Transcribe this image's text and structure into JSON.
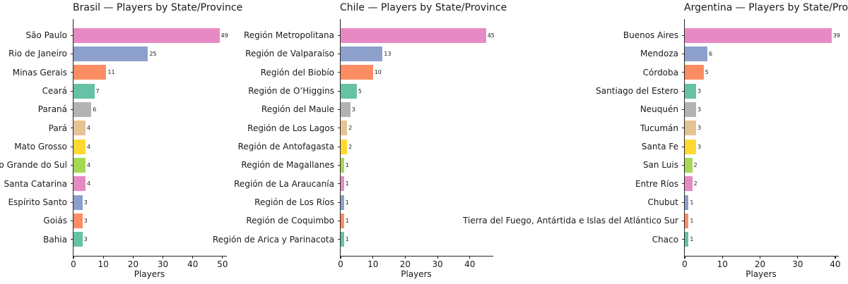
{
  "figure": {
    "background": "#ffffff",
    "text_color": "#1a1a1a",
    "axis_color": "#262626",
    "palette": [
      "#e78ac3",
      "#8da0cb",
      "#fc8d62",
      "#66c2a5",
      "#b3b3b3",
      "#e5c494",
      "#ffd92f",
      "#a6d854"
    ]
  },
  "chart_data": [
    {
      "type": "bar",
      "orientation": "horizontal",
      "title": "Brasil — Players by State/Province",
      "xlabel": "Players",
      "xlim": [
        0,
        51.45
      ],
      "xticks": [
        0,
        10,
        20,
        30,
        40,
        50
      ],
      "grid": false,
      "legend": false,
      "categories": [
        "São Paulo",
        "Rio de Janeiro",
        "Minas Gerais",
        "Ceará",
        "Paraná",
        "Pará",
        "Mato Grosso",
        "Rio Grande do Sul",
        "Santa Catarina",
        "Espírito Santo",
        "Goiás",
        "Bahia"
      ],
      "values": [
        49,
        25,
        11,
        7,
        6,
        4,
        4,
        4,
        4,
        3,
        3,
        3
      ]
    },
    {
      "type": "bar",
      "orientation": "horizontal",
      "title": "Chile — Players by State/Province",
      "xlabel": "Players",
      "xlim": [
        0,
        47.25
      ],
      "xticks": [
        0,
        10,
        20,
        30,
        40
      ],
      "grid": false,
      "legend": false,
      "categories": [
        "Región Metropolitana",
        "Región de Valparaíso",
        "Región del Biobío",
        "Región de O’Higgins",
        "Región del Maule",
        "Región de Los Lagos",
        "Región de Antofagasta",
        "Región de Magallanes",
        "Región de La Araucanía",
        "Región de Los Ríos",
        "Región de Coquimbo",
        "Región de Arica y Parinacota"
      ],
      "values": [
        45,
        13,
        10,
        5,
        3,
        2,
        2,
        1,
        1,
        1,
        1,
        1
      ]
    },
    {
      "type": "bar",
      "orientation": "horizontal",
      "title": "Argentina — Players by State/Province",
      "xlabel": "Players",
      "xlim": [
        0,
        40.95
      ],
      "xticks": [
        0,
        10,
        20,
        30,
        40
      ],
      "grid": false,
      "legend": false,
      "categories": [
        "Buenos Aires",
        "Mendoza",
        "Córdoba",
        "Santiago del Estero",
        "Neuquén",
        "Tucumán",
        "Santa Fe",
        "San Luis",
        "Entre Ríos",
        "Chubut",
        "Tierra del Fuego, Antártida e Islas del Atlántico Sur",
        "Chaco"
      ],
      "values": [
        39,
        6,
        5,
        3,
        3,
        3,
        3,
        2,
        2,
        1,
        1,
        1
      ]
    }
  ]
}
